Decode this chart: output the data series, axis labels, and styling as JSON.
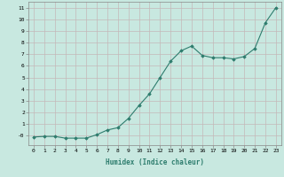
{
  "x": [
    0,
    1,
    2,
    3,
    4,
    5,
    6,
    7,
    8,
    9,
    10,
    11,
    12,
    13,
    14,
    15,
    16,
    17,
    18,
    19,
    20,
    21,
    22,
    23
  ],
  "y": [
    -0.1,
    -0.05,
    -0.05,
    -0.2,
    -0.2,
    -0.2,
    0.1,
    0.5,
    0.7,
    1.5,
    2.6,
    3.6,
    5.0,
    6.4,
    7.3,
    7.7,
    6.9,
    6.7,
    6.7,
    6.6,
    6.8,
    7.5,
    9.7,
    11.0
  ],
  "line_color": "#2e7d6e",
  "marker": "D",
  "marker_size": 1.8,
  "bg_color": "#c8e8e0",
  "grid_color": "#c4b8b8",
  "xlabel": "Humidex (Indice chaleur)",
  "xlim": [
    -0.5,
    23.5
  ],
  "ylim": [
    -0.8,
    11.5
  ],
  "xtick_labels": [
    "0",
    "1",
    "2",
    "3",
    "4",
    "5",
    "6",
    "7",
    "8",
    "9",
    "10",
    "11",
    "12",
    "13",
    "14",
    "15",
    "16",
    "17",
    "18",
    "19",
    "20",
    "21",
    "22",
    "23"
  ],
  "ytick_labels": [
    "-0",
    "1",
    "2",
    "3",
    "4",
    "5",
    "6",
    "7",
    "8",
    "9",
    "10",
    "11"
  ],
  "ytick_vals": [
    0,
    1,
    2,
    3,
    4,
    5,
    6,
    7,
    8,
    9,
    10,
    11
  ]
}
